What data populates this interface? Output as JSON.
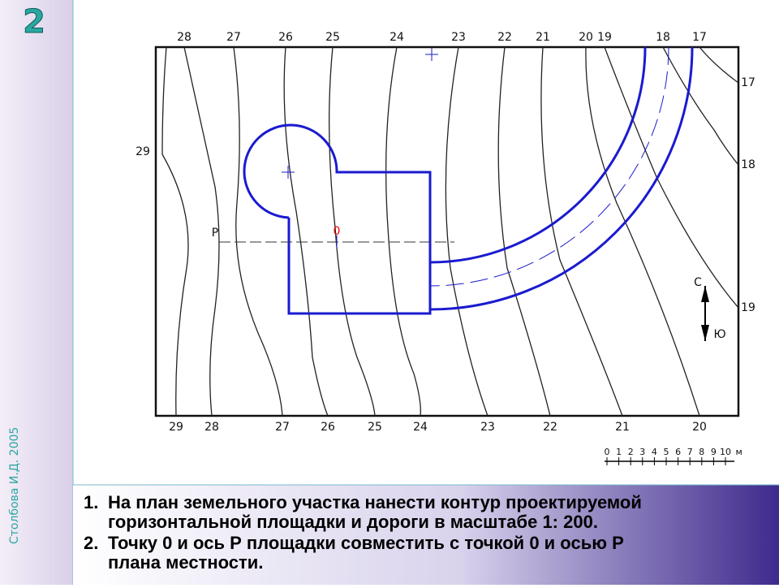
{
  "slide_number": "2",
  "author": "Столбова И.Д. 2005",
  "plan": {
    "top_labels": [
      28,
      27,
      26,
      25,
      24,
      23,
      22,
      21,
      20,
      19,
      18,
      17
    ],
    "right_labels": [
      17,
      18,
      19
    ],
    "left_label": 29,
    "bottom_labels": [
      29,
      28,
      27,
      26,
      25,
      24,
      23,
      22,
      21,
      20
    ],
    "point_label": "0",
    "axis_label": "P",
    "north": "С",
    "south": "Ю"
  },
  "scale": {
    "ticks": [
      0,
      1,
      2,
      3,
      4,
      5,
      6,
      7,
      8,
      9,
      10
    ],
    "unit": "м"
  },
  "instructions": [
    {
      "number": "1.",
      "lines": [
        "На план земельного участка нанести контур проектируемой",
        "горизонтальной площадки и дороги в  масштабе 1: 200."
      ]
    },
    {
      "number": "2.",
      "lines": [
        "Точку 0 и ось Р площадки совместить с точкой 0 и осью Р",
        "плана местности."
      ]
    }
  ]
}
